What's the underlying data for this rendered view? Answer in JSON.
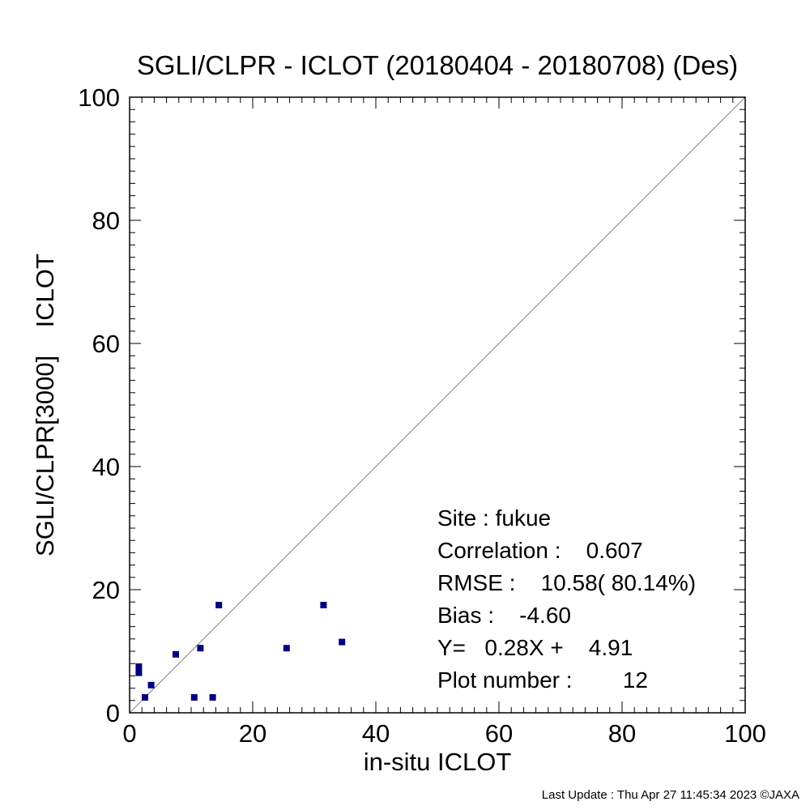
{
  "chart_data": {
    "type": "scatter",
    "title": "SGLI/CLPR - ICLOT (20180404 - 20180708) (Des)",
    "xlabel": "in-situ ICLOT",
    "ylabel": "SGLI/CLPR[3000]    ICLOT",
    "xlim": [
      0,
      100
    ],
    "ylim": [
      0,
      100
    ],
    "xticks": [
      "0",
      "20",
      "40",
      "60",
      "80",
      "100"
    ],
    "yticks": [
      "0",
      "20",
      "40",
      "60",
      "80",
      "100"
    ],
    "one_to_one_line": true,
    "grid": false,
    "marker_color": "#000080",
    "line_color": "#808080",
    "points": [
      {
        "x": 1.5,
        "y": 7.5
      },
      {
        "x": 1.5,
        "y": 6.5
      },
      {
        "x": 2.5,
        "y": 2.5
      },
      {
        "x": 3.5,
        "y": 4.5
      },
      {
        "x": 7.5,
        "y": 9.5
      },
      {
        "x": 10.5,
        "y": 2.5
      },
      {
        "x": 11.5,
        "y": 10.5
      },
      {
        "x": 13.5,
        "y": 2.5
      },
      {
        "x": 14.5,
        "y": 17.5
      },
      {
        "x": 25.5,
        "y": 10.5
      },
      {
        "x": 31.5,
        "y": 17.5
      },
      {
        "x": 34.5,
        "y": 11.5
      }
    ],
    "stats": [
      "Site : fukue",
      "Correlation :    0.607",
      "RMSE :    10.58( 80.14%)",
      "Bias :    -4.60",
      "Y=   0.28X +    4.91",
      "Plot number :        12"
    ]
  },
  "footer": "Last Update : Thu Apr 27 11:45:34 2023  ©JAXA"
}
